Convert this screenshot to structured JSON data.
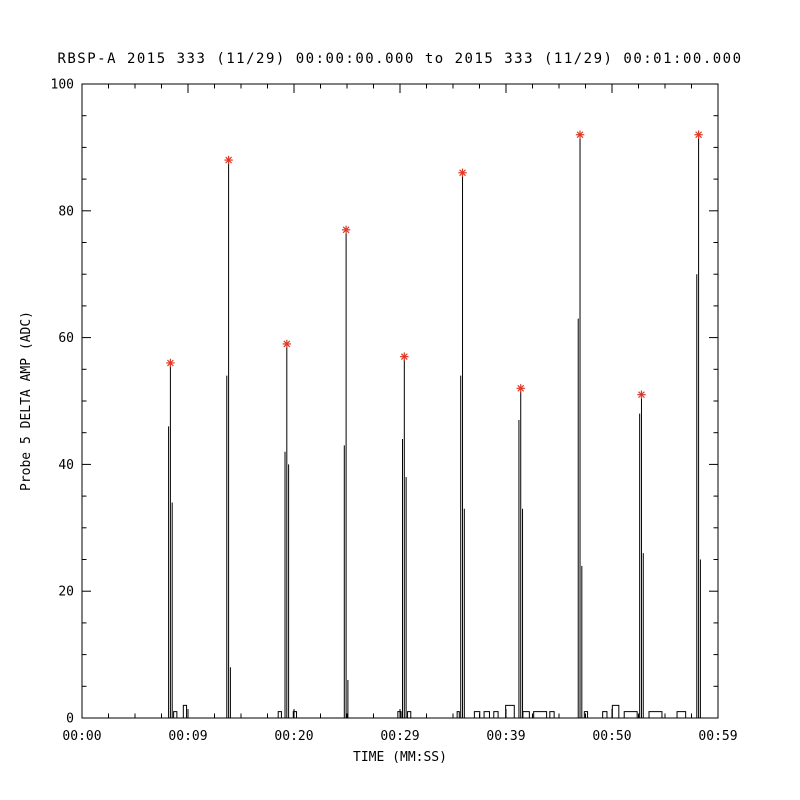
{
  "chart_data": {
    "type": "line",
    "title": "RBSP-A 2015 333 (11/29) 00:00:00.000 to 2015 333 (11/29) 00:01:00.000",
    "xlabel": "TIME (MM:SS)",
    "ylabel": "Probe 5 DELTA AMP (ADC)",
    "xlim_seconds": [
      0,
      59
    ],
    "ylim": [
      0,
      100
    ],
    "x_tick_labels": [
      "00:00",
      "00:09",
      "00:20",
      "00:29",
      "00:39",
      "00:50",
      "00:59"
    ],
    "y_ticks": [
      0,
      20,
      40,
      60,
      80,
      100
    ],
    "y_minor_step": 5,
    "x_minor_per_major": 4,
    "grid": false,
    "legend": "none",
    "line_color": "#000000",
    "marker": "asterisk",
    "marker_color": "#dd3a26",
    "peaks": [
      {
        "seconds": 8.2,
        "value": 56
      },
      {
        "seconds": 13.6,
        "value": 88
      },
      {
        "seconds": 19.0,
        "value": 59
      },
      {
        "seconds": 24.5,
        "value": 77
      },
      {
        "seconds": 29.9,
        "value": 57
      },
      {
        "seconds": 35.3,
        "value": 86
      },
      {
        "seconds": 40.7,
        "value": 52
      },
      {
        "seconds": 46.2,
        "value": 92
      },
      {
        "seconds": 51.9,
        "value": 51
      },
      {
        "seconds": 57.2,
        "value": 92
      }
    ],
    "spike_shoulders": [
      [
        46,
        34
      ],
      [
        54,
        8
      ],
      [
        42,
        40
      ],
      [
        43,
        6
      ],
      [
        44,
        38
      ],
      [
        54,
        33
      ],
      [
        47,
        33
      ],
      [
        63,
        24
      ],
      [
        48,
        26
      ],
      [
        70,
        25
      ]
    ],
    "baseline_pulses": [
      [
        8.5,
        8.8,
        1
      ],
      [
        9.4,
        9.7,
        2
      ],
      [
        18.2,
        18.5,
        1
      ],
      [
        19.6,
        19.9,
        1
      ],
      [
        29.3,
        29.6,
        1
      ],
      [
        30.2,
        30.5,
        1
      ],
      [
        34.8,
        35.0,
        1
      ],
      [
        36.4,
        36.9,
        1
      ],
      [
        37.3,
        37.8,
        1
      ],
      [
        38.2,
        38.6,
        1
      ],
      [
        39.3,
        40.1,
        2
      ],
      [
        40.9,
        41.5,
        1
      ],
      [
        41.9,
        43.1,
        1
      ],
      [
        43.4,
        43.8,
        1
      ],
      [
        46.6,
        46.9,
        1
      ],
      [
        48.3,
        48.7,
        1
      ],
      [
        49.2,
        49.8,
        2
      ],
      [
        50.3,
        51.5,
        1
      ],
      [
        52.6,
        53.8,
        1
      ],
      [
        55.2,
        56.0,
        1
      ]
    ]
  }
}
